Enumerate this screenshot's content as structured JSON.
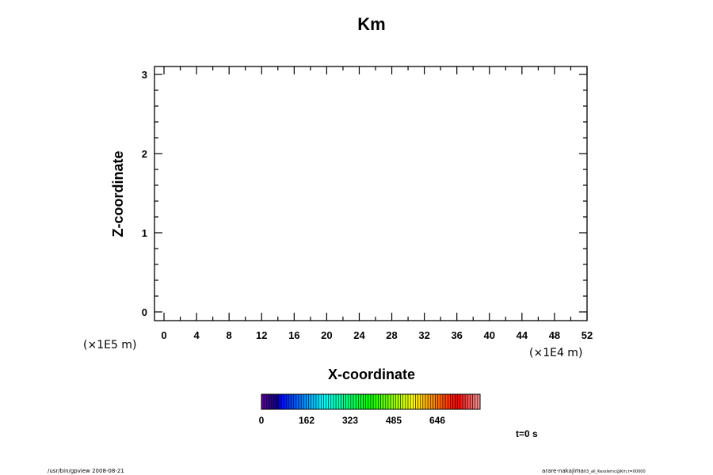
{
  "chart_data": {
    "type": "heatmap",
    "title": "Km",
    "xlabel": "X-coordinate",
    "ylabel": "Z-coordinate",
    "x_unit_label": "(×1E4 m)",
    "y_unit_label": "(×1E5 m)",
    "xlim": [
      -1.17,
      52
    ],
    "ylim": [
      -0.11,
      3.1
    ],
    "x_ticks": [
      0,
      4,
      8,
      12,
      16,
      20,
      24,
      28,
      32,
      36,
      40,
      44,
      48,
      52
    ],
    "x_minor_step": 2,
    "y_ticks": [
      0,
      1,
      2,
      3
    ],
    "y_minor_step": 0.2,
    "grid": false,
    "values": [],
    "colorbar": {
      "orientation": "horizontal",
      "tick_labels": [
        "0",
        "162",
        "323",
        "485",
        "646"
      ],
      "colors_from": "#5a009a",
      "colors_to": "#f4a0a0"
    },
    "time_label": "t=0 s"
  },
  "footer": {
    "left": "/usr/bin/gpview 2008-08-21",
    "right_main": "arare-nakajima",
    "right_sub": "03_all_Kesslernc@Km,t=00000"
  }
}
